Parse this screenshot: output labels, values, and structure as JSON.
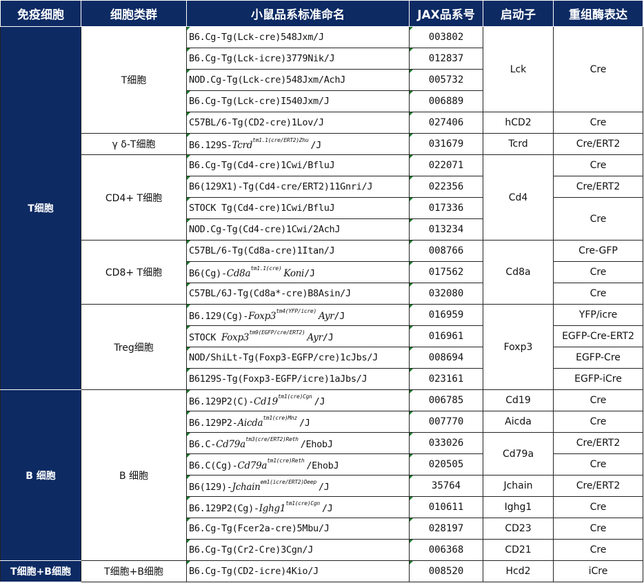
{
  "headers": [
    "免疫细胞",
    "细胞类群",
    "小鼠品系标准命名",
    "JAX品系号",
    "启动子",
    "重组酶表达"
  ],
  "colors": {
    "header": "#0d2a63",
    "marker": "#1a7a2a"
  },
  "rows": [
    {
      "immune": {
        "text": "T细胞",
        "span": 17
      },
      "group": {
        "text": "T细胞",
        "span": 5
      },
      "strain": {
        "pre": "B6.Cg-Tg(Lck-cre)548Jxm/J"
      },
      "jax": "003802",
      "promoter": {
        "text": "Lck",
        "span": 4
      },
      "enzyme": {
        "text": "Cre",
        "span": 4
      }
    },
    {
      "strain": {
        "pre": "B6.Cg-Tg(Lck-icre)3779Nik/J"
      },
      "jax": "012837"
    },
    {
      "strain": {
        "pre": "NOD.Cg-Tg(Lck-cre)548Jxm/AchJ"
      },
      "jax": "005732"
    },
    {
      "strain": {
        "pre": "B6.Cg-Tg(Lck-cre)I540Jxm/J"
      },
      "jax": "006889"
    },
    {
      "strain": {
        "pre": "C57BL/6-Tg(CD2-cre)1Lov/J"
      },
      "jax": "027406",
      "promoter": {
        "text": "hCD2",
        "span": 1
      },
      "enzyme": {
        "text": "Cre",
        "span": 1
      }
    },
    {
      "group": {
        "text": "γ δ-T细胞",
        "span": 1
      },
      "strain": {
        "pre": "B6.129S-",
        "gene": "Tcrd",
        "sup": "tm1.1(cre/ERT2)Zhu",
        "post": "/J"
      },
      "jax": "031679",
      "promoter": {
        "text": "Tcrd",
        "span": 1
      },
      "enzyme": {
        "text": "Cre/ERT2",
        "span": 1
      }
    },
    {
      "group": {
        "text": "CD4+ T细胞",
        "span": 4
      },
      "strain": {
        "pre": "B6.Cg-Tg(Cd4-cre)1Cwi/BfluJ"
      },
      "jax": "022071",
      "promoter": {
        "text": "Cd4",
        "span": 4
      },
      "enzyme": {
        "text": "Cre",
        "span": 1
      }
    },
    {
      "strain": {
        "pre": "B6(129X1)-Tg(Cd4-cre/ERT2)11Gnri/J"
      },
      "jax": "022356",
      "enzyme": {
        "text": "Cre/ERT2",
        "span": 1
      }
    },
    {
      "strain": {
        "pre": "STOCK Tg(Cd4-cre)1Cwi/BfluJ"
      },
      "jax": "017336",
      "enzyme": {
        "text": "Cre",
        "span": 2
      }
    },
    {
      "strain": {
        "pre": "NOD.Cg-Tg(Cd4-cre)1Cwi/2AchJ"
      },
      "jax": "013234"
    },
    {
      "group": {
        "text": "CD8+ T细胞",
        "span": 3
      },
      "strain": {
        "pre": "C57BL/6-Tg(Cd8a-cre)1Itan/J"
      },
      "jax": "008766",
      "promoter": {
        "text": "Cd8a",
        "span": 3
      },
      "enzyme": {
        "text": "Cre-GFP",
        "span": 1
      }
    },
    {
      "strain": {
        "pre": "B6(Cg)-",
        "gene": "Cd8a",
        "sup": "tm1.1(cre)",
        "post": "Koni/J",
        "postItalic": "Koni"
      },
      "jax": "017562",
      "enzyme": {
        "text": "Cre",
        "span": 1
      }
    },
    {
      "strain": {
        "pre": "C57BL/6J-Tg(Cd8a*-cre)B8Asin/J"
      },
      "jax": "032080",
      "enzyme": {
        "text": "Cre",
        "span": 1
      }
    },
    {
      "group": {
        "text": "Treg细胞",
        "span": 4
      },
      "strain": {
        "pre": "B6.129(Cg)-",
        "gene": "Foxp3",
        "sup": "tm4(YFP/icre)",
        "post": "/J",
        "postItalic": "Ayr"
      },
      "jax": "016959",
      "promoter": {
        "text": "Foxp3",
        "span": 4
      },
      "enzyme": {
        "text": "YFP/icre",
        "span": 1
      }
    },
    {
      "strain": {
        "pre": "STOCK ",
        "gene": "Foxp3",
        "sup": "tm9(EGFP/cre/ERT2)",
        "post": "/J",
        "postItalic": "Ayr"
      },
      "jax": "016961",
      "enzyme": {
        "text": "EGFP-Cre-ERT2",
        "span": 1
      }
    },
    {
      "strain": {
        "pre": "NOD/ShiLt-Tg(Foxp3-EGFP/cre)1cJbs/J"
      },
      "jax": "008694",
      "enzyme": {
        "text": "EGFP-Cre",
        "span": 1
      }
    },
    {
      "strain": {
        "pre": "B6129S-Tg(Foxp3-EGFP/icre)1aJbs/J"
      },
      "jax": "023161",
      "enzyme": {
        "text": "EGFP-iCre",
        "span": 1
      }
    },
    {
      "immune": {
        "text": "B 细胞",
        "span": 8
      },
      "group": {
        "text": "B 细胞",
        "span": 8
      },
      "strain": {
        "pre": "B6.129P2(C)-",
        "gene": "Cd19",
        "sup": "tm1(cre)Cgn",
        "post": "/J"
      },
      "jax": "006785",
      "promoter": {
        "text": "Cd19",
        "span": 1
      },
      "enzyme": {
        "text": "Cre",
        "span": 1
      }
    },
    {
      "strain": {
        "pre": "B6.129P2-",
        "gene": "Aicda",
        "sup": "tm1(cre)Mnz",
        "post": "/J"
      },
      "jax": "007770",
      "promoter": {
        "text": "Aicda",
        "span": 1
      },
      "enzyme": {
        "text": "Cre",
        "span": 1
      }
    },
    {
      "strain": {
        "pre": "B6.C-",
        "gene": "Cd79a",
        "sup": "tm3(cre/ERT2)Reth",
        "post": "/EhobJ"
      },
      "jax": "033026",
      "promoter": {
        "text": "Cd79a",
        "span": 2
      },
      "enzyme": {
        "text": "Cre/ERT2",
        "span": 1
      }
    },
    {
      "strain": {
        "pre": "B6.C(Cg)-",
        "gene": "Cd79a",
        "sup": "tm1(cre)Reth",
        "post": "/EhobJ"
      },
      "jax": "020505",
      "enzyme": {
        "text": "Cre",
        "span": 1
      }
    },
    {
      "strain": {
        "pre": "B6(129)-",
        "gene": "Jchain",
        "sup": "em1(icre/ERT2)Deep",
        "post": "/J"
      },
      "jax": "35764",
      "promoter": {
        "text": "Jchain",
        "span": 1
      },
      "enzyme": {
        "text": "Cre/ERT2",
        "span": 1
      }
    },
    {
      "strain": {
        "pre": "B6.129P2(Cg)-",
        "gene": "Ighg1",
        "sup": "tm1(cre)Cgn",
        "post": "/J"
      },
      "jax": "010611",
      "promoter": {
        "text": "Ighg1",
        "span": 1
      },
      "enzyme": {
        "text": "Cre",
        "span": 1
      }
    },
    {
      "strain": {
        "pre": "B6.Cg-Tg(Fcer2a-cre)5Mbu/J"
      },
      "jax": "028197",
      "promoter": {
        "text": "CD23",
        "span": 1
      },
      "enzyme": {
        "text": "Cre",
        "span": 1
      }
    },
    {
      "strain": {
        "pre": "B6.Cg-Tg(Cr2-Cre)3Cgn/J"
      },
      "jax": "006368",
      "promoter": {
        "text": "CD21",
        "span": 1
      },
      "enzyme": {
        "text": "Cre",
        "span": 1
      }
    },
    {
      "immune": {
        "text": "T细胞+B细胞",
        "span": 1
      },
      "group": {
        "text": "T细胞+B细胞",
        "span": 1
      },
      "strain": {
        "pre": "B6.Cg-Tg(CD2-icre)4Kio/J"
      },
      "jax": "008520",
      "promoter": {
        "text": "Hcd2",
        "span": 1
      },
      "enzyme": {
        "text": "iCre",
        "span": 1
      }
    }
  ]
}
